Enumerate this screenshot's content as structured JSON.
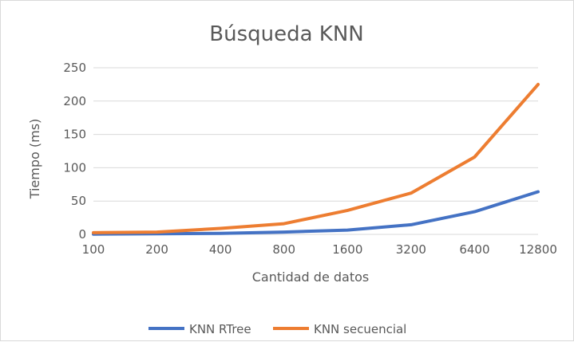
{
  "chart_data": {
    "type": "line",
    "title": "Búsqueda KNN",
    "xlabel": "Cantidad de datos",
    "ylabel": "Tiempo (ms)",
    "categories": [
      "100",
      "200",
      "400",
      "800",
      "1600",
      "3200",
      "6400",
      "12800"
    ],
    "ylim": [
      0,
      250
    ],
    "yticks": [
      0,
      50,
      100,
      150,
      200,
      250
    ],
    "grid": true,
    "legend": "bottom",
    "series": [
      {
        "name": "KNN RTree",
        "color": "#4472C4",
        "values": [
          0.4,
          0.8,
          1.5,
          3.5,
          6.5,
          14.5,
          34,
          64
        ]
      },
      {
        "name": "KNN secuencial",
        "color": "#ED7D31",
        "values": [
          2.5,
          3.5,
          9,
          16,
          36,
          62,
          116,
          225
        ]
      }
    ]
  }
}
